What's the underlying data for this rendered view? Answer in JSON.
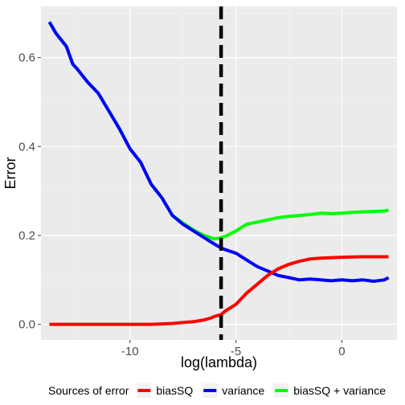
{
  "chart_data": {
    "type": "line",
    "xlabel": "log(lambda)",
    "ylabel": "Error",
    "xlim": [
      -14.2,
      2.6
    ],
    "ylim": [
      -0.035,
      0.715
    ],
    "x_ticks": [
      -10,
      -5,
      0
    ],
    "x_tick_labels": [
      "-10",
      "-5",
      "0"
    ],
    "y_ticks": [
      0.0,
      0.2,
      0.4,
      0.6
    ],
    "y_tick_labels": [
      "0.0",
      "0.2",
      "0.4",
      "0.6"
    ],
    "grid": true,
    "vline": {
      "x": -5.7,
      "style": "dashed",
      "color": "#000000"
    },
    "legend": {
      "title": "Sources of error",
      "position": "bottom"
    },
    "series": [
      {
        "name": "biasSQ",
        "color": "#ff0000",
        "x": [
          -13.8,
          -13.0,
          -12.0,
          -11.0,
          -10.0,
          -9.0,
          -8.0,
          -7.5,
          -7.0,
          -6.5,
          -6.2,
          -6.0,
          -5.7,
          -5.5,
          -5.0,
          -4.5,
          -4.0,
          -3.5,
          -3.0,
          -2.5,
          -2.0,
          -1.5,
          -1.0,
          0.0,
          1.0,
          2.2
        ],
        "y": [
          0.0,
          0.0,
          0.0,
          0.0,
          0.0,
          0.0,
          0.002,
          0.004,
          0.006,
          0.01,
          0.014,
          0.018,
          0.022,
          0.03,
          0.045,
          0.07,
          0.09,
          0.11,
          0.125,
          0.135,
          0.142,
          0.147,
          0.149,
          0.151,
          0.152,
          0.152
        ]
      },
      {
        "name": "variance",
        "color": "#0000ff",
        "x": [
          -13.8,
          -13.5,
          -13.0,
          -12.7,
          -12.5,
          -12.0,
          -11.5,
          -11.0,
          -10.5,
          -10.0,
          -9.5,
          -9.0,
          -8.5,
          -8.0,
          -7.5,
          -7.0,
          -6.5,
          -6.0,
          -5.7,
          -5.5,
          -5.0,
          -4.5,
          -4.0,
          -3.5,
          -3.0,
          -2.5,
          -2.0,
          -1.5,
          -1.0,
          -0.5,
          0.0,
          0.5,
          1.0,
          1.5,
          2.0,
          2.2
        ],
        "y": [
          0.68,
          0.655,
          0.625,
          0.585,
          0.575,
          0.545,
          0.52,
          0.48,
          0.44,
          0.395,
          0.365,
          0.315,
          0.285,
          0.245,
          0.225,
          0.21,
          0.195,
          0.18,
          0.172,
          0.168,
          0.16,
          0.145,
          0.13,
          0.12,
          0.11,
          0.105,
          0.1,
          0.102,
          0.1,
          0.098,
          0.1,
          0.098,
          0.1,
          0.097,
          0.1,
          0.105
        ]
      },
      {
        "name": "biasSQ + variance",
        "color": "#00ff00",
        "x": [
          -13.8,
          -13.5,
          -13.0,
          -12.7,
          -12.5,
          -12.0,
          -11.5,
          -11.0,
          -10.5,
          -10.0,
          -9.5,
          -9.0,
          -8.5,
          -8.0,
          -7.5,
          -7.0,
          -6.5,
          -6.0,
          -5.7,
          -5.5,
          -5.0,
          -4.5,
          -4.0,
          -3.5,
          -3.0,
          -2.5,
          -2.0,
          -1.5,
          -1.0,
          -0.5,
          0.0,
          0.5,
          1.0,
          1.5,
          2.0,
          2.2
        ],
        "y": [
          0.68,
          0.655,
          0.625,
          0.585,
          0.575,
          0.545,
          0.52,
          0.48,
          0.44,
          0.395,
          0.365,
          0.315,
          0.285,
          0.245,
          0.228,
          0.212,
          0.2,
          0.192,
          0.195,
          0.198,
          0.21,
          0.225,
          0.23,
          0.235,
          0.24,
          0.243,
          0.245,
          0.247,
          0.25,
          0.249,
          0.25,
          0.252,
          0.253,
          0.254,
          0.255,
          0.257
        ]
      }
    ]
  }
}
